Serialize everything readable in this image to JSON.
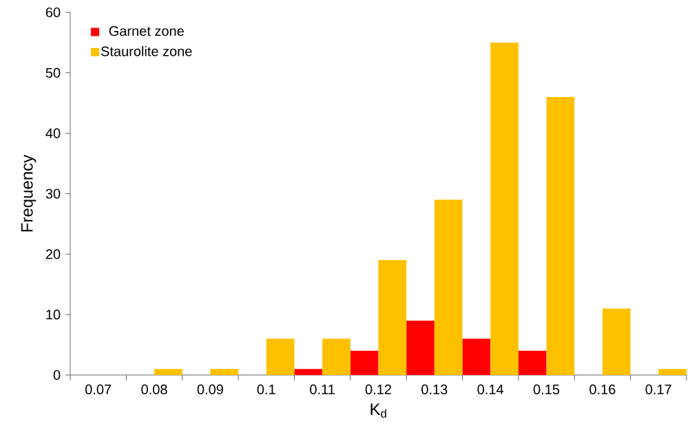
{
  "chart_data": {
    "type": "bar",
    "xlabel": "K$_{d}$",
    "ylabel": "Frequency",
    "categories": [
      "0.07",
      "0.08",
      "0.09",
      "0.1",
      "0.11",
      "0.12",
      "0.13",
      "0.14",
      "0.15",
      "0.16",
      "0.17"
    ],
    "series": [
      {
        "name": "Garnet zone",
        "color": "#ff0000",
        "values": [
          0,
          0,
          0,
          0,
          1,
          4,
          9,
          6,
          4,
          0,
          0
        ]
      },
      {
        "name": "Staurolite zone",
        "color": "#ffc000",
        "values": [
          0,
          1,
          1,
          6,
          6,
          19,
          29,
          55,
          46,
          11,
          1
        ]
      }
    ],
    "ylim": [
      0,
      60
    ],
    "yticks": [
      0,
      10,
      20,
      30,
      40,
      50,
      60
    ],
    "legend": "top left"
  }
}
